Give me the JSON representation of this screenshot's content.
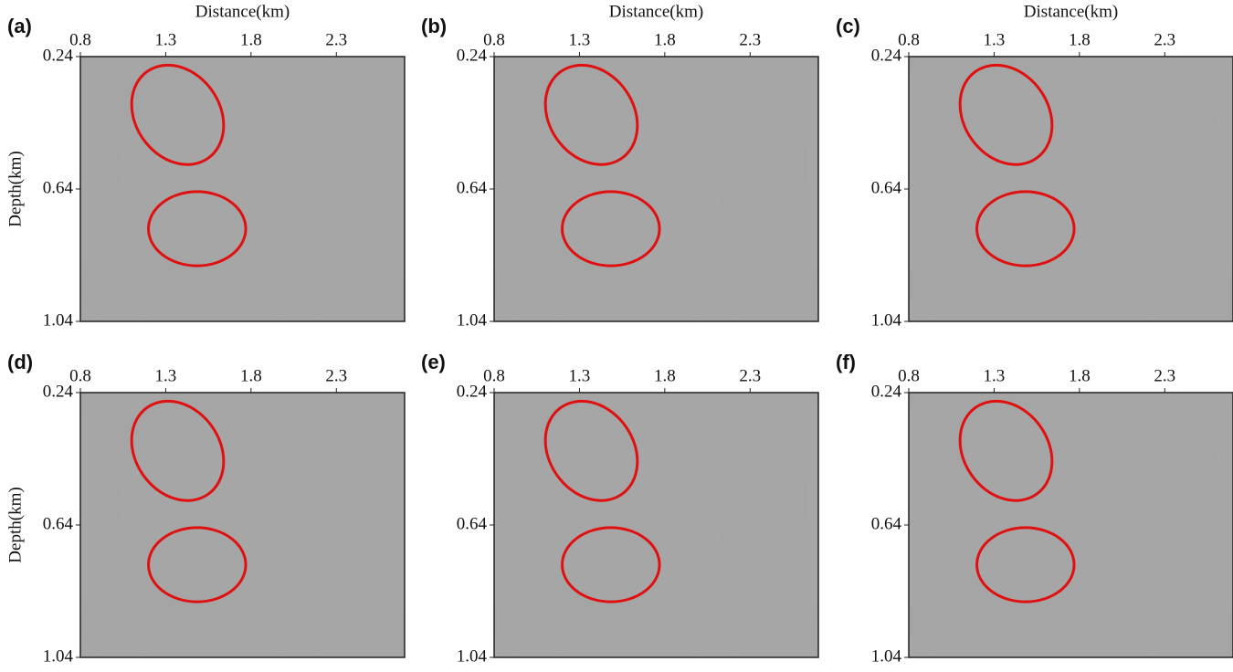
{
  "chart_data": [
    {
      "type": "image",
      "panel_label": "(a)",
      "xlabel": "Distance(km)",
      "ylabel": "Depth(km)",
      "xlim": [
        0.8,
        2.7
      ],
      "ylim": [
        0.24,
        1.04
      ],
      "xticks": [
        0.8,
        1.3,
        1.8,
        2.3
      ],
      "yticks": [
        0.24,
        0.64,
        1.04
      ]
    },
    {
      "type": "image",
      "panel_label": "(b)",
      "xlabel": "Distance(km)",
      "xlim": [
        0.8,
        2.7
      ],
      "ylim": [
        0.24,
        1.04
      ],
      "xticks": [
        0.8,
        1.3,
        1.8,
        2.3
      ],
      "yticks": [
        0.24,
        0.64,
        1.04
      ]
    },
    {
      "type": "image",
      "panel_label": "(c)",
      "xlabel": "Distance(km)",
      "xlim": [
        0.8,
        2.7
      ],
      "ylim": [
        0.24,
        1.04
      ],
      "xticks": [
        0.8,
        1.3,
        1.8,
        2.3
      ],
      "yticks": [
        0.24,
        0.64,
        1.04
      ]
    },
    {
      "type": "image",
      "panel_label": "(d)",
      "ylabel": "Depth(km)",
      "xlim": [
        0.8,
        2.7
      ],
      "ylim": [
        0.24,
        1.04
      ],
      "xticks": [
        0.8,
        1.3,
        1.8,
        2.3
      ],
      "yticks": [
        0.24,
        0.64,
        1.04
      ]
    },
    {
      "type": "image",
      "panel_label": "(e)",
      "xlim": [
        0.8,
        2.7
      ],
      "ylim": [
        0.24,
        1.04
      ],
      "xticks": [
        0.8,
        1.3,
        1.8,
        2.3
      ],
      "yticks": [
        0.24,
        0.64,
        1.04
      ]
    },
    {
      "type": "image",
      "panel_label": "(f)",
      "xlim": [
        0.8,
        2.7
      ],
      "ylim": [
        0.24,
        1.04
      ],
      "xticks": [
        0.8,
        1.3,
        1.8,
        2.3
      ],
      "yticks": [
        0.24,
        0.64,
        1.04
      ]
    }
  ]
}
